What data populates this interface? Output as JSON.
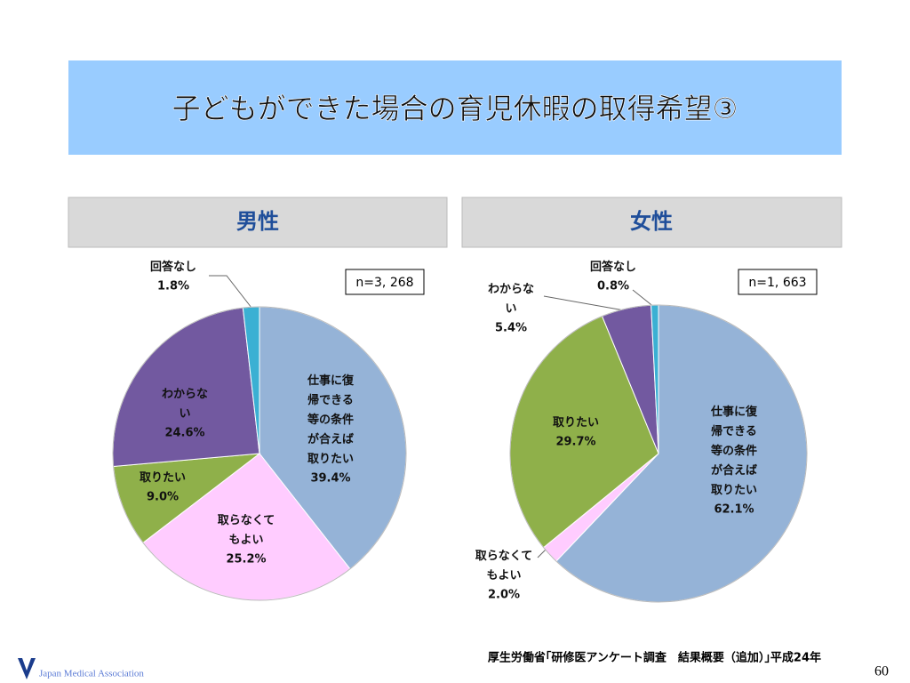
{
  "title": "子どもができた場合の育児休暇の取得希望③",
  "source": "厚生労働省｢研修医アンケート調査　結果概要（追加）｣平成24年",
  "page_number": "60",
  "logo": "Japan Medical Association",
  "chart_data": [
    {
      "type": "pie",
      "title": "男性",
      "annotation": "n=3, 268",
      "categories": [
        "仕事に復帰できる等の条件が合えば取りたい",
        "取らなくてもよい",
        "取りたい",
        "わからない",
        "回答なし"
      ],
      "values": [
        39.4,
        25.2,
        9.0,
        24.6,
        1.8
      ],
      "value_labels": [
        "39.4%",
        "25.2%",
        "9.0%",
        "24.6%",
        "1.8%"
      ],
      "colors": [
        "#95b3d7",
        "#ffccff",
        "#8fb04a",
        "#7259a0",
        "#3bb0d3"
      ]
    },
    {
      "type": "pie",
      "title": "女性",
      "annotation": "n=1, 663",
      "categories": [
        "仕事に復帰できる等の条件が合えば取りたい",
        "取らなくてもよい",
        "取りたい",
        "わからない",
        "回答なし"
      ],
      "values": [
        62.1,
        2.0,
        29.7,
        5.4,
        0.8
      ],
      "value_labels": [
        "62.1%",
        "2.0%",
        "29.7%",
        "5.4%",
        "0.8%"
      ],
      "colors": [
        "#95b3d7",
        "#ffccff",
        "#8fb04a",
        "#7259a0",
        "#3bb0d3"
      ]
    }
  ]
}
